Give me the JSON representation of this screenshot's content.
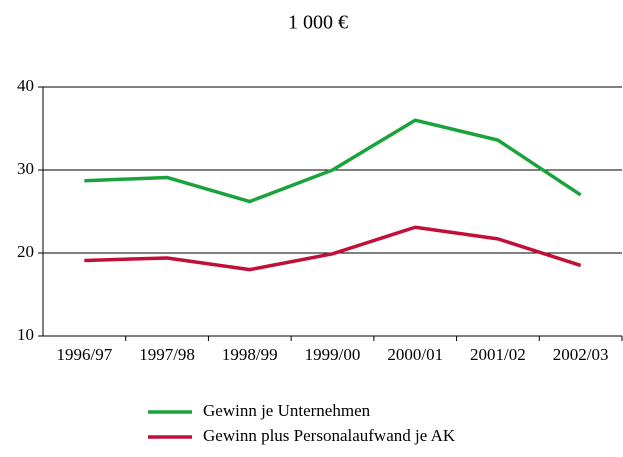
{
  "chart_data": {
    "type": "line",
    "title": "1 000 €",
    "categories": [
      "1996/97",
      "1997/98",
      "1998/99",
      "1999/00",
      "2000/01",
      "2001/02",
      "2002/03"
    ],
    "series": [
      {
        "name": "Gewinn je Unternehmen",
        "color": "#1aa33a",
        "values": [
          28.7,
          29.1,
          26.2,
          30.0,
          36.0,
          33.6,
          27.0
        ]
      },
      {
        "name": "Gewinn plus Personalaufwand je AK",
        "color": "#c0103a",
        "values": [
          19.1,
          19.4,
          18.0,
          19.9,
          23.1,
          21.7,
          18.5
        ]
      }
    ],
    "ylim": [
      10,
      40
    ],
    "yticks": [
      10,
      20,
      30,
      40
    ],
    "grid": true
  }
}
